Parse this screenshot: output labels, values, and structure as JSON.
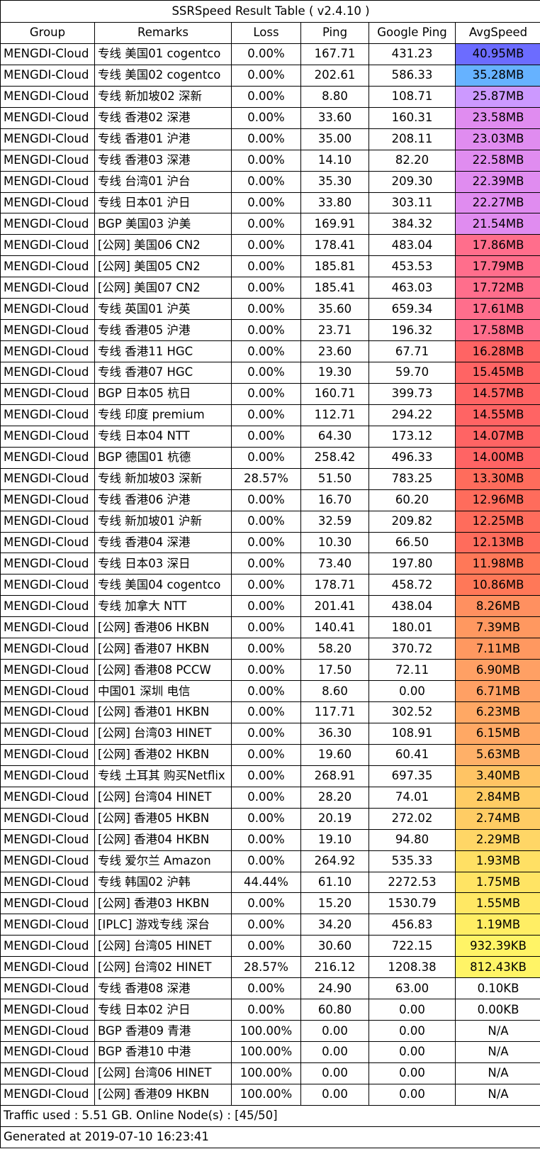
{
  "title": "SSRSpeed Result Table ( v2.4.10 )",
  "columns": [
    "Group",
    "Remarks",
    "Loss",
    "Ping",
    "Google Ping",
    "AvgSpeed"
  ],
  "rows": [
    {
      "group": "MENGDI-Cloud",
      "remarks": "专线 美国01 cogentco",
      "loss": "0.00%",
      "ping": "167.71",
      "gping": "431.23",
      "speed": "40.95MB",
      "color": "#6c6cff"
    },
    {
      "group": "MENGDI-Cloud",
      "remarks": "专线 美国02 cogentco",
      "loss": "0.00%",
      "ping": "202.61",
      "gping": "586.33",
      "speed": "35.28MB",
      "color": "#66b2ff"
    },
    {
      "group": "MENGDI-Cloud",
      "remarks": "专线 新加坡02 深新",
      "loss": "0.00%",
      "ping": "8.80",
      "gping": "108.71",
      "speed": "25.87MB",
      "color": "#cc99ff"
    },
    {
      "group": "MENGDI-Cloud",
      "remarks": "专线 香港02 深港",
      "loss": "0.00%",
      "ping": "33.60",
      "gping": "160.31",
      "speed": "23.58MB",
      "color": "#e08cf0"
    },
    {
      "group": "MENGDI-Cloud",
      "remarks": "专线 香港01 沪港",
      "loss": "0.00%",
      "ping": "35.00",
      "gping": "208.11",
      "speed": "23.03MB",
      "color": "#e08cf0"
    },
    {
      "group": "MENGDI-Cloud",
      "remarks": "专线 香港03 深港",
      "loss": "0.00%",
      "ping": "14.10",
      "gping": "82.20",
      "speed": "22.58MB",
      "color": "#e08cf0"
    },
    {
      "group": "MENGDI-Cloud",
      "remarks": "专线 台湾01 沪台",
      "loss": "0.00%",
      "ping": "35.30",
      "gping": "209.30",
      "speed": "22.39MB",
      "color": "#e08cf0"
    },
    {
      "group": "MENGDI-Cloud",
      "remarks": "专线 日本01 沪日",
      "loss": "0.00%",
      "ping": "33.80",
      "gping": "303.11",
      "speed": "22.27MB",
      "color": "#e08cf0"
    },
    {
      "group": "MENGDI-Cloud",
      "remarks": "BGP 美国03 沪美",
      "loss": "0.00%",
      "ping": "169.91",
      "gping": "384.32",
      "speed": "21.54MB",
      "color": "#e08cf0"
    },
    {
      "group": "MENGDI-Cloud",
      "remarks": "[公网] 美国06 CN2",
      "loss": "0.00%",
      "ping": "178.41",
      "gping": "483.04",
      "speed": "17.86MB",
      "color": "#ff6e8c"
    },
    {
      "group": "MENGDI-Cloud",
      "remarks": "[公网] 美国05 CN2",
      "loss": "0.00%",
      "ping": "185.81",
      "gping": "453.53",
      "speed": "17.79MB",
      "color": "#ff6e8c"
    },
    {
      "group": "MENGDI-Cloud",
      "remarks": "[公网] 美国07 CN2",
      "loss": "0.00%",
      "ping": "185.41",
      "gping": "463.03",
      "speed": "17.72MB",
      "color": "#ff6e8c"
    },
    {
      "group": "MENGDI-Cloud",
      "remarks": "专线 英国01 沪英",
      "loss": "0.00%",
      "ping": "35.60",
      "gping": "659.34",
      "speed": "17.61MB",
      "color": "#ff6e8c"
    },
    {
      "group": "MENGDI-Cloud",
      "remarks": "专线 香港05 沪港",
      "loss": "0.00%",
      "ping": "23.71",
      "gping": "196.32",
      "speed": "17.58MB",
      "color": "#ff6e8c"
    },
    {
      "group": "MENGDI-Cloud",
      "remarks": "专线 香港11 HGC",
      "loss": "0.00%",
      "ping": "23.60",
      "gping": "67.71",
      "speed": "16.28MB",
      "color": "#ff6464"
    },
    {
      "group": "MENGDI-Cloud",
      "remarks": "专线 香港07 HGC",
      "loss": "0.00%",
      "ping": "19.30",
      "gping": "59.70",
      "speed": "15.45MB",
      "color": "#ff6464"
    },
    {
      "group": "MENGDI-Cloud",
      "remarks": "BGP 日本05 杭日",
      "loss": "0.00%",
      "ping": "160.71",
      "gping": "399.73",
      "speed": "14.57MB",
      "color": "#ff6464"
    },
    {
      "group": "MENGDI-Cloud",
      "remarks": "专线 印度 premium",
      "loss": "0.00%",
      "ping": "112.71",
      "gping": "294.22",
      "speed": "14.55MB",
      "color": "#ff6464"
    },
    {
      "group": "MENGDI-Cloud",
      "remarks": "专线 日本04 NTT",
      "loss": "0.00%",
      "ping": "64.30",
      "gping": "173.12",
      "speed": "14.07MB",
      "color": "#ff6464"
    },
    {
      "group": "MENGDI-Cloud",
      "remarks": "BGP 德国01 杭德",
      "loss": "0.00%",
      "ping": "258.42",
      "gping": "496.33",
      "speed": "14.00MB",
      "color": "#ff6464"
    },
    {
      "group": "MENGDI-Cloud",
      "remarks": "专线 新加坡03 深新",
      "loss": "28.57%",
      "ping": "51.50",
      "gping": "783.25",
      "speed": "13.30MB",
      "color": "#ff6c5c"
    },
    {
      "group": "MENGDI-Cloud",
      "remarks": "专线 香港06 沪港",
      "loss": "0.00%",
      "ping": "16.70",
      "gping": "60.20",
      "speed": "12.96MB",
      "color": "#ff6c5c"
    },
    {
      "group": "MENGDI-Cloud",
      "remarks": "专线 新加坡01 沪新",
      "loss": "0.00%",
      "ping": "32.59",
      "gping": "209.82",
      "speed": "12.25MB",
      "color": "#ff6c5c"
    },
    {
      "group": "MENGDI-Cloud",
      "remarks": "专线 香港04 深港",
      "loss": "0.00%",
      "ping": "10.30",
      "gping": "66.50",
      "speed": "12.13MB",
      "color": "#ff6c5c"
    },
    {
      "group": "MENGDI-Cloud",
      "remarks": "专线 日本03 深日",
      "loss": "0.00%",
      "ping": "73.40",
      "gping": "197.80",
      "speed": "11.98MB",
      "color": "#ff7858"
    },
    {
      "group": "MENGDI-Cloud",
      "remarks": "专线 美国04 cogentco",
      "loss": "0.00%",
      "ping": "178.71",
      "gping": "458.72",
      "speed": "10.86MB",
      "color": "#ff7858"
    },
    {
      "group": "MENGDI-Cloud",
      "remarks": "专线 加拿大 NTT",
      "loss": "0.00%",
      "ping": "201.41",
      "gping": "438.04",
      "speed": "8.26MB",
      "color": "#ff9060"
    },
    {
      "group": "MENGDI-Cloud",
      "remarks": "[公网] 香港06 HKBN",
      "loss": "0.00%",
      "ping": "140.41",
      "gping": "180.01",
      "speed": "7.39MB",
      "color": "#ff9860"
    },
    {
      "group": "MENGDI-Cloud",
      "remarks": "[公网] 香港07 HKBN",
      "loss": "0.00%",
      "ping": "58.20",
      "gping": "370.72",
      "speed": "7.11MB",
      "color": "#ff9860"
    },
    {
      "group": "MENGDI-Cloud",
      "remarks": "[公网] 香港08 PCCW",
      "loss": "0.00%",
      "ping": "17.50",
      "gping": "72.11",
      "speed": "6.90MB",
      "color": "#ffa064"
    },
    {
      "group": "MENGDI-Cloud",
      "remarks": "中国01 深圳 电信",
      "loss": "0.00%",
      "ping": "8.60",
      "gping": "0.00",
      "speed": "6.71MB",
      "color": "#ffa064"
    },
    {
      "group": "MENGDI-Cloud",
      "remarks": "[公网] 香港01 HKBN",
      "loss": "0.00%",
      "ping": "117.71",
      "gping": "302.52",
      "speed": "6.23MB",
      "color": "#ffa864"
    },
    {
      "group": "MENGDI-Cloud",
      "remarks": "[公网] 台湾03 HINET",
      "loss": "0.00%",
      "ping": "36.30",
      "gping": "108.91",
      "speed": "6.15MB",
      "color": "#ffa864"
    },
    {
      "group": "MENGDI-Cloud",
      "remarks": "[公网] 香港02 HKBN",
      "loss": "0.00%",
      "ping": "19.60",
      "gping": "60.41",
      "speed": "5.63MB",
      "color": "#ffb068"
    },
    {
      "group": "MENGDI-Cloud",
      "remarks": "专线 土耳其 购买Netflix",
      "loss": "0.00%",
      "ping": "268.91",
      "gping": "697.35",
      "speed": "3.40MB",
      "color": "#ffc464"
    },
    {
      "group": "MENGDI-Cloud",
      "remarks": "[公网] 台湾04 HINET",
      "loss": "0.00%",
      "ping": "28.20",
      "gping": "74.01",
      "speed": "2.84MB",
      "color": "#ffcc64"
    },
    {
      "group": "MENGDI-Cloud",
      "remarks": "[公网] 香港05 HKBN",
      "loss": "0.00%",
      "ping": "20.19",
      "gping": "272.02",
      "speed": "2.74MB",
      "color": "#ffcc64"
    },
    {
      "group": "MENGDI-Cloud",
      "remarks": "[公网] 香港04 HKBN",
      "loss": "0.00%",
      "ping": "19.10",
      "gping": "94.80",
      "speed": "2.29MB",
      "color": "#ffd666"
    },
    {
      "group": "MENGDI-Cloud",
      "remarks": "专线 爱尔兰 Amazon",
      "loss": "0.00%",
      "ping": "264.92",
      "gping": "535.33",
      "speed": "1.93MB",
      "color": "#ffe064"
    },
    {
      "group": "MENGDI-Cloud",
      "remarks": "专线 韩国02 沪韩",
      "loss": "44.44%",
      "ping": "61.10",
      "gping": "2272.53",
      "speed": "1.75MB",
      "color": "#ffe464"
    },
    {
      "group": "MENGDI-Cloud",
      "remarks": "[公网] 香港03 HKBN",
      "loss": "0.00%",
      "ping": "15.20",
      "gping": "1530.79",
      "speed": "1.55MB",
      "color": "#ffe864"
    },
    {
      "group": "MENGDI-Cloud",
      "remarks": "[IPLC] 游戏专线 深台",
      "loss": "0.00%",
      "ping": "34.20",
      "gping": "456.83",
      "speed": "1.19MB",
      "color": "#ffee64"
    },
    {
      "group": "MENGDI-Cloud",
      "remarks": "[公网] 台湾05 HINET",
      "loss": "0.00%",
      "ping": "30.60",
      "gping": "722.15",
      "speed": "932.39KB",
      "color": "#fff466"
    },
    {
      "group": "MENGDI-Cloud",
      "remarks": "[公网] 台湾02 HINET",
      "loss": "28.57%",
      "ping": "216.12",
      "gping": "1208.38",
      "speed": "812.43KB",
      "color": "#fff466"
    },
    {
      "group": "MENGDI-Cloud",
      "remarks": "专线 香港08 深港",
      "loss": "0.00%",
      "ping": "24.90",
      "gping": "63.00",
      "speed": "0.10KB",
      "color": "#ffffff"
    },
    {
      "group": "MENGDI-Cloud",
      "remarks": "专线 日本02 沪日",
      "loss": "0.00%",
      "ping": "60.80",
      "gping": "0.00",
      "speed": "0.00KB",
      "color": "#ffffff"
    },
    {
      "group": "MENGDI-Cloud",
      "remarks": "BGP 香港09 青港",
      "loss": "100.00%",
      "ping": "0.00",
      "gping": "0.00",
      "speed": "N/A",
      "color": "#ffffff"
    },
    {
      "group": "MENGDI-Cloud",
      "remarks": "BGP 香港10 中港",
      "loss": "100.00%",
      "ping": "0.00",
      "gping": "0.00",
      "speed": "N/A",
      "color": "#ffffff"
    },
    {
      "group": "MENGDI-Cloud",
      "remarks": "[公网] 台湾06 HINET",
      "loss": "100.00%",
      "ping": "0.00",
      "gping": "0.00",
      "speed": "N/A",
      "color": "#ffffff"
    },
    {
      "group": "MENGDI-Cloud",
      "remarks": "[公网] 香港09 HKBN",
      "loss": "100.00%",
      "ping": "0.00",
      "gping": "0.00",
      "speed": "N/A",
      "color": "#ffffff"
    }
  ],
  "footer": {
    "traffic": "Traffic used : 5.51 GB. Online Node(s) : [45/50]",
    "generated": "Generated at 2019-07-10 16:23:41"
  }
}
